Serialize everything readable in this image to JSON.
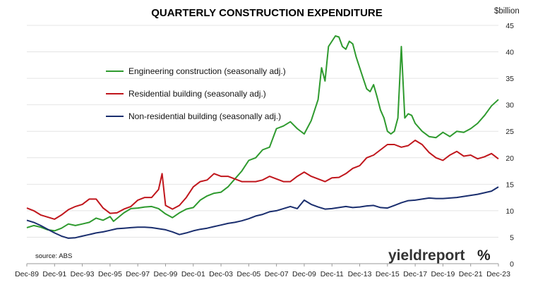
{
  "chart_data": {
    "type": "line",
    "title": "QUARTERLY CONSTRUCTION EXPENDITURE",
    "unit_label": "$billion",
    "xlabel": "",
    "ylabel": "",
    "ylim": [
      0,
      45
    ],
    "y_ticks": [
      0,
      5,
      10,
      15,
      20,
      25,
      30,
      35,
      40,
      45
    ],
    "x_start": "Dec-89",
    "x_end": "Dec-23",
    "x_tick_labels": [
      "Dec-89",
      "Dec-91",
      "Dec-93",
      "Dec-95",
      "Dec-97",
      "Dec-99",
      "Dec-01",
      "Dec-03",
      "Dec-05",
      "Dec-07",
      "Dec-09",
      "Dec-11",
      "Dec-13",
      "Dec-15",
      "Dec-17",
      "Dec-19",
      "Dec-21",
      "Dec-23"
    ],
    "grid": "horizontal",
    "legend_placement": "upper-left",
    "source": "source: ABS",
    "logo": {
      "text": "yieldreport",
      "symbol": "%"
    },
    "series": [
      {
        "name": "Engineering construction (seasonally adj.)",
        "color": "#2e9a2e",
        "points": [
          [
            "Dec-89",
            6.8
          ],
          [
            "Jun-90",
            7.2
          ],
          [
            "Dec-90",
            6.9
          ],
          [
            "Jun-91",
            6.4
          ],
          [
            "Dec-91",
            6.2
          ],
          [
            "Jun-92",
            6.7
          ],
          [
            "Dec-92",
            7.5
          ],
          [
            "Jun-93",
            7.2
          ],
          [
            "Dec-93",
            7.5
          ],
          [
            "Jun-94",
            7.8
          ],
          [
            "Dec-94",
            8.6
          ],
          [
            "Jun-95",
            8.2
          ],
          [
            "Dec-95",
            8.9
          ],
          [
            "Mar-96",
            8.0
          ],
          [
            "Dec-96",
            9.6
          ],
          [
            "Jun-97",
            10.4
          ],
          [
            "Dec-97",
            10.5
          ],
          [
            "Jun-98",
            10.7
          ],
          [
            "Dec-98",
            10.8
          ],
          [
            "Jun-99",
            10.4
          ],
          [
            "Dec-99",
            9.4
          ],
          [
            "Jun-00",
            8.7
          ],
          [
            "Dec-00",
            9.6
          ],
          [
            "Jun-01",
            10.3
          ],
          [
            "Dec-01",
            10.6
          ],
          [
            "Jun-02",
            12.0
          ],
          [
            "Dec-02",
            12.8
          ],
          [
            "Jun-03",
            13.3
          ],
          [
            "Dec-03",
            13.5
          ],
          [
            "Jun-04",
            14.5
          ],
          [
            "Dec-04",
            16.0
          ],
          [
            "Jun-05",
            17.5
          ],
          [
            "Dec-05",
            19.5
          ],
          [
            "Jun-06",
            20.0
          ],
          [
            "Dec-06",
            21.5
          ],
          [
            "Jun-07",
            22.0
          ],
          [
            "Dec-07",
            25.5
          ],
          [
            "Jun-08",
            26.0
          ],
          [
            "Dec-08",
            26.8
          ],
          [
            "Jun-09",
            25.5
          ],
          [
            "Dec-09",
            24.5
          ],
          [
            "Jun-10",
            27.0
          ],
          [
            "Dec-10",
            31.0
          ],
          [
            "Mar-11",
            37.0
          ],
          [
            "Jun-11",
            34.5
          ],
          [
            "Sep-11",
            41.0
          ],
          [
            "Dec-11",
            42.0
          ],
          [
            "Mar-12",
            43.0
          ],
          [
            "Jun-12",
            42.8
          ],
          [
            "Sep-12",
            41.0
          ],
          [
            "Dec-12",
            40.5
          ],
          [
            "Mar-13",
            42.0
          ],
          [
            "Jun-13",
            41.5
          ],
          [
            "Sep-13",
            39.0
          ],
          [
            "Dec-13",
            37.0
          ],
          [
            "Mar-14",
            35.0
          ],
          [
            "Jun-14",
            33.0
          ],
          [
            "Sep-14",
            32.5
          ],
          [
            "Dec-14",
            33.8
          ],
          [
            "Mar-15",
            31.5
          ],
          [
            "Jun-15",
            29.0
          ],
          [
            "Sep-15",
            27.5
          ],
          [
            "Dec-15",
            25.0
          ],
          [
            "Mar-16",
            24.5
          ],
          [
            "Jun-16",
            25.0
          ],
          [
            "Sep-16",
            27.5
          ],
          [
            "Dec-16",
            41.0
          ],
          [
            "Mar-17",
            27.5
          ],
          [
            "Jun-17",
            28.3
          ],
          [
            "Sep-17",
            28.0
          ],
          [
            "Dec-17",
            26.5
          ],
          [
            "Jun-18",
            25.0
          ],
          [
            "Dec-18",
            24.0
          ],
          [
            "Jun-19",
            23.8
          ],
          [
            "Dec-19",
            24.8
          ],
          [
            "Jun-20",
            24.0
          ],
          [
            "Dec-20",
            25.0
          ],
          [
            "Jun-21",
            24.8
          ],
          [
            "Dec-21",
            25.5
          ],
          [
            "Jun-22",
            26.5
          ],
          [
            "Dec-22",
            28.0
          ],
          [
            "Jun-23",
            29.8
          ],
          [
            "Dec-23",
            31.0
          ]
        ]
      },
      {
        "name": "Residential building (seasonally adj.)",
        "color": "#c0161c",
        "points": [
          [
            "Dec-89",
            10.5
          ],
          [
            "Jun-90",
            10.0
          ],
          [
            "Dec-90",
            9.2
          ],
          [
            "Jun-91",
            8.8
          ],
          [
            "Dec-91",
            8.4
          ],
          [
            "Jun-92",
            9.2
          ],
          [
            "Dec-92",
            10.2
          ],
          [
            "Jun-93",
            10.8
          ],
          [
            "Dec-93",
            11.2
          ],
          [
            "Jun-94",
            12.2
          ],
          [
            "Dec-94",
            12.2
          ],
          [
            "Jun-95",
            10.5
          ],
          [
            "Dec-95",
            9.5
          ],
          [
            "Jun-96",
            9.6
          ],
          [
            "Dec-96",
            10.3
          ],
          [
            "Jun-97",
            10.8
          ],
          [
            "Dec-97",
            12.0
          ],
          [
            "Jun-98",
            12.5
          ],
          [
            "Dec-98",
            12.5
          ],
          [
            "Jun-99",
            14.0
          ],
          [
            "Sep-99",
            17.0
          ],
          [
            "Dec-99",
            11.0
          ],
          [
            "Jun-00",
            10.3
          ],
          [
            "Dec-00",
            11.0
          ],
          [
            "Jun-01",
            12.5
          ],
          [
            "Dec-01",
            14.5
          ],
          [
            "Jun-02",
            15.5
          ],
          [
            "Dec-02",
            15.8
          ],
          [
            "Jun-03",
            17.0
          ],
          [
            "Dec-03",
            16.5
          ],
          [
            "Jun-04",
            16.5
          ],
          [
            "Dec-04",
            16.0
          ],
          [
            "Jun-05",
            15.5
          ],
          [
            "Dec-05",
            15.5
          ],
          [
            "Jun-06",
            15.5
          ],
          [
            "Dec-06",
            15.8
          ],
          [
            "Jun-07",
            16.5
          ],
          [
            "Dec-07",
            16.0
          ],
          [
            "Jun-08",
            15.5
          ],
          [
            "Dec-08",
            15.5
          ],
          [
            "Jun-09",
            16.5
          ],
          [
            "Dec-09",
            17.3
          ],
          [
            "Jun-10",
            16.5
          ],
          [
            "Dec-10",
            16.0
          ],
          [
            "Jun-11",
            15.5
          ],
          [
            "Dec-11",
            16.2
          ],
          [
            "Jun-12",
            16.3
          ],
          [
            "Dec-12",
            17.0
          ],
          [
            "Jun-13",
            18.0
          ],
          [
            "Dec-13",
            18.5
          ],
          [
            "Jun-14",
            20.0
          ],
          [
            "Dec-14",
            20.5
          ],
          [
            "Jun-15",
            21.5
          ],
          [
            "Dec-15",
            22.5
          ],
          [
            "Jun-16",
            22.5
          ],
          [
            "Dec-16",
            22.0
          ],
          [
            "Jun-17",
            22.3
          ],
          [
            "Dec-17",
            23.3
          ],
          [
            "Jun-18",
            22.5
          ],
          [
            "Dec-18",
            21.0
          ],
          [
            "Jun-19",
            20.0
          ],
          [
            "Dec-19",
            19.5
          ],
          [
            "Jun-20",
            20.5
          ],
          [
            "Dec-20",
            21.2
          ],
          [
            "Jun-21",
            20.3
          ],
          [
            "Dec-21",
            20.5
          ],
          [
            "Jun-22",
            19.8
          ],
          [
            "Dec-22",
            20.2
          ],
          [
            "Jun-23",
            20.8
          ],
          [
            "Dec-23",
            19.8
          ]
        ]
      },
      {
        "name": "Non-residential building (seasonally adj.)",
        "color": "#1a2e6e",
        "points": [
          [
            "Dec-89",
            8.2
          ],
          [
            "Jun-90",
            7.8
          ],
          [
            "Dec-90",
            7.2
          ],
          [
            "Jun-91",
            6.5
          ],
          [
            "Dec-91",
            5.8
          ],
          [
            "Jun-92",
            5.2
          ],
          [
            "Dec-92",
            4.8
          ],
          [
            "Jun-93",
            4.9
          ],
          [
            "Dec-93",
            5.2
          ],
          [
            "Jun-94",
            5.5
          ],
          [
            "Dec-94",
            5.8
          ],
          [
            "Jun-95",
            6.0
          ],
          [
            "Dec-95",
            6.3
          ],
          [
            "Jun-96",
            6.6
          ],
          [
            "Dec-96",
            6.7
          ],
          [
            "Jun-97",
            6.8
          ],
          [
            "Dec-97",
            6.9
          ],
          [
            "Jun-98",
            6.9
          ],
          [
            "Dec-98",
            6.8
          ],
          [
            "Jun-99",
            6.6
          ],
          [
            "Dec-99",
            6.4
          ],
          [
            "Jun-00",
            6.0
          ],
          [
            "Dec-00",
            5.5
          ],
          [
            "Jun-01",
            5.8
          ],
          [
            "Dec-01",
            6.2
          ],
          [
            "Jun-02",
            6.5
          ],
          [
            "Dec-02",
            6.7
          ],
          [
            "Jun-03",
            7.0
          ],
          [
            "Dec-03",
            7.3
          ],
          [
            "Jun-04",
            7.6
          ],
          [
            "Dec-04",
            7.8
          ],
          [
            "Jun-05",
            8.1
          ],
          [
            "Dec-05",
            8.5
          ],
          [
            "Jun-06",
            9.0
          ],
          [
            "Dec-06",
            9.3
          ],
          [
            "Jun-07",
            9.8
          ],
          [
            "Dec-07",
            10.0
          ],
          [
            "Jun-08",
            10.4
          ],
          [
            "Dec-08",
            10.8
          ],
          [
            "Jun-09",
            10.4
          ],
          [
            "Dec-09",
            12.0
          ],
          [
            "Jun-10",
            11.2
          ],
          [
            "Dec-10",
            10.7
          ],
          [
            "Jun-11",
            10.3
          ],
          [
            "Dec-11",
            10.4
          ],
          [
            "Jun-12",
            10.6
          ],
          [
            "Dec-12",
            10.8
          ],
          [
            "Jun-13",
            10.6
          ],
          [
            "Dec-13",
            10.7
          ],
          [
            "Jun-14",
            10.9
          ],
          [
            "Dec-14",
            11.0
          ],
          [
            "Jun-15",
            10.6
          ],
          [
            "Dec-15",
            10.5
          ],
          [
            "Jun-16",
            11.0
          ],
          [
            "Dec-16",
            11.5
          ],
          [
            "Jun-17",
            11.9
          ],
          [
            "Dec-17",
            12.0
          ],
          [
            "Jun-18",
            12.2
          ],
          [
            "Dec-18",
            12.4
          ],
          [
            "Jun-19",
            12.3
          ],
          [
            "Dec-19",
            12.3
          ],
          [
            "Jun-20",
            12.4
          ],
          [
            "Dec-20",
            12.5
          ],
          [
            "Jun-21",
            12.7
          ],
          [
            "Dec-21",
            12.9
          ],
          [
            "Jun-22",
            13.1
          ],
          [
            "Dec-22",
            13.4
          ],
          [
            "Jun-23",
            13.7
          ],
          [
            "Dec-23",
            14.5
          ]
        ]
      }
    ]
  }
}
